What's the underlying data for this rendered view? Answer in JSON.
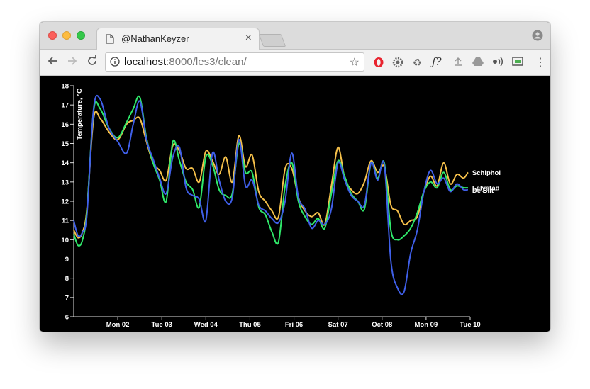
{
  "browser": {
    "tab_title": "@NathanKeyzer",
    "url_host": "localhost",
    "url_rest": ":8000/les3/clean/",
    "icons": [
      "page-icon",
      "close-icon",
      "user-profile-icon",
      "back-arrow-icon",
      "forward-arrow-icon",
      "reload-icon",
      "info-icon",
      "star-icon",
      "opera-icon",
      "settings-cog-icon",
      "recycle-icon",
      "font-f-icon",
      "upload-icon",
      "drive-icon",
      "audio-icon",
      "cast-icon",
      "more-vert-icon"
    ]
  },
  "chart_data": {
    "type": "line",
    "ylabel": "Temperature, °C",
    "xlabel": "",
    "ylim": [
      6,
      18
    ],
    "yticks": [
      "6",
      "7",
      "8",
      "9",
      "10",
      "11",
      "12",
      "13",
      "14",
      "15",
      "16",
      "17",
      "18"
    ],
    "xticks": [
      "Mon 02",
      "Tue 03",
      "Wed 04",
      "Thu 05",
      "Fri 06",
      "Sat 07",
      "Oct 08",
      "Mon 09",
      "Tue 10"
    ],
    "xrange_days": [
      0,
      9
    ],
    "grid": false,
    "legend": "line-end labels",
    "series": [
      {
        "name": "Schiphol",
        "color": "#f5c04a",
        "x": [
          0,
          0.1,
          0.2,
          0.3,
          0.45,
          0.6,
          0.8,
          1.0,
          1.2,
          1.35,
          1.5,
          1.65,
          1.8,
          1.95,
          2.1,
          2.25,
          2.4,
          2.55,
          2.7,
          2.85,
          3.0,
          3.15,
          3.3,
          3.45,
          3.6,
          3.75,
          3.9,
          4.05,
          4.2,
          4.35,
          4.5,
          4.65,
          4.8,
          4.95,
          5.1,
          5.25,
          5.4,
          5.55,
          5.7,
          5.85,
          6.0,
          6.15,
          6.3,
          6.45,
          6.6,
          6.75,
          6.9,
          7.05,
          7.2,
          7.35,
          7.5,
          7.65,
          7.8,
          7.95,
          8.1,
          8.25,
          8.4,
          8.55,
          8.7,
          8.85,
          8.95
        ],
        "values": [
          10.5,
          10.1,
          10.4,
          11.6,
          16.3,
          16.3,
          15.6,
          15.2,
          16.0,
          16.2,
          16.3,
          15.1,
          14.0,
          13.6,
          13.1,
          14.9,
          14.6,
          13.7,
          13.7,
          13.0,
          14.6,
          14.1,
          13.4,
          14.3,
          13.0,
          15.4,
          13.8,
          14.4,
          12.5,
          12.0,
          11.5,
          11.2,
          13.7,
          13.7,
          12.2,
          11.5,
          11.2,
          11.4,
          10.8,
          12.8,
          14.8,
          13.2,
          12.6,
          12.4,
          13.0,
          14.1,
          13.5,
          13.8,
          11.8,
          11.5,
          10.8,
          11.0,
          11.2,
          12.5,
          13.3,
          12.8,
          14.0,
          12.9,
          13.4,
          13.2,
          13.5
        ]
      },
      {
        "name": "Lelystad",
        "color": "#2fe86a",
        "x": [
          0,
          0.1,
          0.2,
          0.3,
          0.45,
          0.6,
          0.8,
          1.0,
          1.2,
          1.35,
          1.5,
          1.65,
          1.8,
          1.95,
          2.1,
          2.25,
          2.4,
          2.55,
          2.7,
          2.85,
          3.0,
          3.15,
          3.3,
          3.45,
          3.6,
          3.75,
          3.9,
          4.05,
          4.2,
          4.35,
          4.5,
          4.65,
          4.8,
          4.95,
          5.1,
          5.25,
          5.4,
          5.55,
          5.7,
          5.85,
          6.0,
          6.15,
          6.3,
          6.45,
          6.6,
          6.75,
          6.9,
          7.05,
          7.2,
          7.35,
          7.5,
          7.65,
          7.8,
          7.95,
          8.1,
          8.25,
          8.4,
          8.55,
          8.7,
          8.85,
          8.95
        ],
        "values": [
          10.3,
          9.7,
          10.0,
          11.5,
          16.7,
          16.8,
          15.8,
          15.3,
          16.1,
          16.8,
          17.4,
          15.3,
          14.0,
          13.1,
          12.0,
          15.1,
          14.1,
          13.0,
          12.6,
          11.7,
          14.3,
          13.9,
          12.6,
          12.3,
          12.4,
          15.0,
          13.5,
          13.5,
          11.7,
          11.3,
          10.4,
          9.9,
          12.8,
          14.0,
          12.0,
          11.2,
          10.8,
          11.1,
          10.6,
          12.4,
          14.1,
          13.3,
          12.4,
          12.0,
          11.6,
          14.0,
          13.2,
          14.0,
          10.5,
          10.0,
          10.2,
          10.6,
          11.4,
          12.5,
          13.0,
          12.7,
          13.5,
          12.6,
          12.8,
          12.7,
          12.7
        ]
      },
      {
        "name": "De Bilt",
        "color": "#3f5fe8",
        "x": [
          0,
          0.1,
          0.2,
          0.3,
          0.45,
          0.6,
          0.8,
          1.0,
          1.2,
          1.35,
          1.5,
          1.65,
          1.8,
          1.95,
          2.1,
          2.25,
          2.4,
          2.55,
          2.7,
          2.85,
          3.0,
          3.15,
          3.3,
          3.45,
          3.6,
          3.75,
          3.9,
          4.05,
          4.2,
          4.35,
          4.5,
          4.65,
          4.8,
          4.95,
          5.1,
          5.25,
          5.4,
          5.55,
          5.7,
          5.85,
          6.0,
          6.15,
          6.3,
          6.45,
          6.6,
          6.75,
          6.9,
          7.05,
          7.2,
          7.35,
          7.5,
          7.65,
          7.8,
          7.95,
          8.1,
          8.25,
          8.4,
          8.55,
          8.7,
          8.85,
          8.95
        ],
        "values": [
          11.0,
          10.2,
          10.4,
          11.3,
          16.8,
          17.3,
          15.8,
          15.1,
          14.5,
          16.0,
          17.2,
          15.2,
          14.2,
          13.2,
          12.4,
          14.3,
          14.8,
          12.7,
          12.3,
          12.1,
          11.0,
          14.5,
          13.1,
          12.0,
          12.2,
          15.2,
          12.8,
          13.1,
          11.8,
          11.5,
          11.1,
          10.9,
          12.0,
          14.5,
          12.2,
          11.6,
          10.6,
          11.0,
          10.8,
          11.6,
          14.0,
          13.1,
          12.3,
          12.0,
          11.8,
          14.0,
          13.1,
          13.9,
          8.9,
          7.5,
          7.3,
          9.3,
          10.5,
          12.5,
          13.6,
          12.9,
          13.2,
          12.5,
          12.9,
          12.6,
          12.6
        ]
      }
    ]
  }
}
